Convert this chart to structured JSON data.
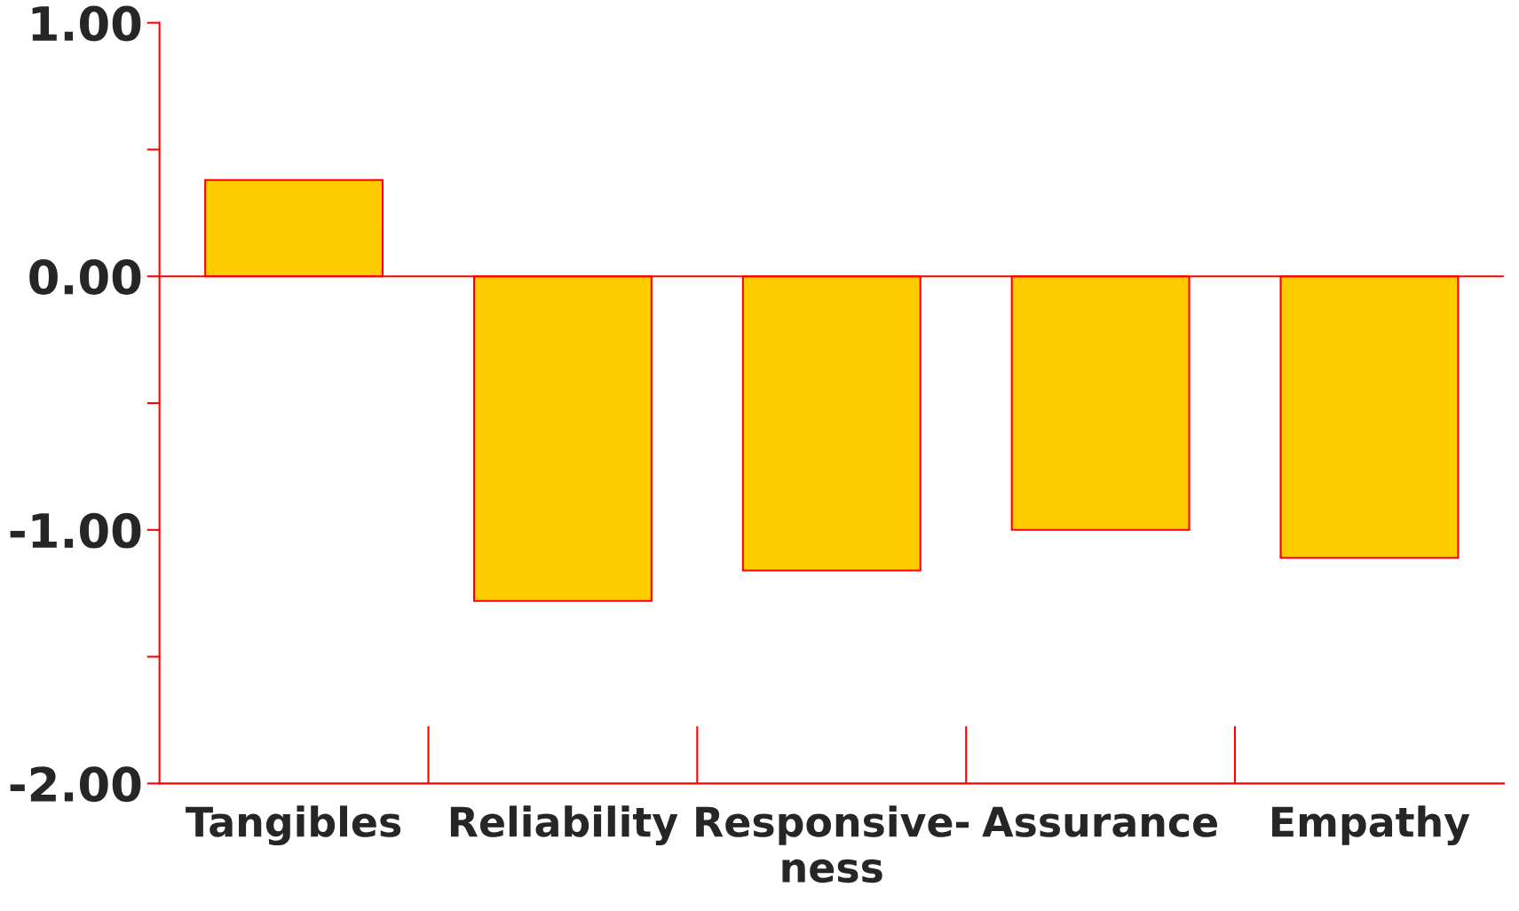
{
  "chart_data": {
    "type": "bar",
    "categories": [
      "Tangibles",
      "Reliability",
      "Responsive-\nness",
      "Assurance",
      "Empathy"
    ],
    "values": [
      0.38,
      -1.28,
      -1.16,
      -1.0,
      -1.11
    ],
    "color": "#ffcc00",
    "ylim": [
      -2,
      1
    ],
    "yticks": [
      {
        "value": -2,
        "label": "-2.00"
      },
      {
        "value": -1.5,
        "label": null
      },
      {
        "value": -1,
        "label": "-1.00"
      },
      {
        "value": -0.5,
        "label": null
      },
      {
        "value": 0,
        "label": "0.00"
      },
      {
        "value": 0.5,
        "label": null
      },
      {
        "value": 1,
        "label": "1.00"
      }
    ],
    "ref_lines": [
      {
        "axis": "y",
        "value": 0,
        "color": "#ff0000"
      }
    ],
    "grid": false
  }
}
